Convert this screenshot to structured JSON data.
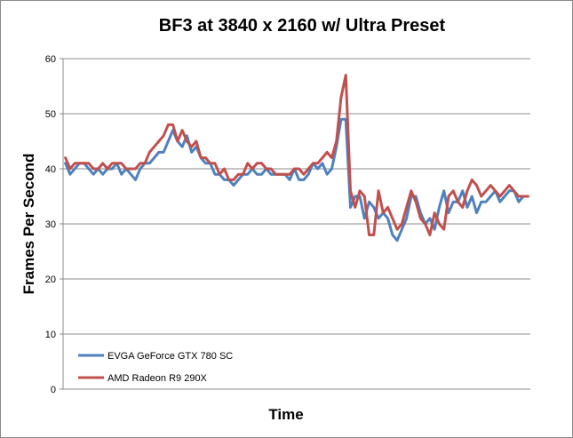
{
  "chart_data": {
    "type": "line",
    "title": "BF3 at 3840 x 2160 w/ Ultra Preset",
    "xlabel": "Time",
    "ylabel": "Frames Per Second",
    "ylim": [
      0,
      60
    ],
    "yticks": [
      0,
      10,
      20,
      30,
      40,
      50,
      60
    ],
    "grid": true,
    "legend_position": "bottom-left",
    "x": [
      1,
      2,
      3,
      4,
      5,
      6,
      7,
      8,
      9,
      10,
      11,
      12,
      13,
      14,
      15,
      16,
      17,
      18,
      19,
      20,
      21,
      22,
      23,
      24,
      25,
      26,
      27,
      28,
      29,
      30,
      31,
      32,
      33,
      34,
      35,
      36,
      37,
      38,
      39,
      40,
      41,
      42,
      43,
      44,
      45,
      46,
      47,
      48,
      49,
      50,
      51,
      52,
      53,
      54,
      55,
      56,
      57,
      58,
      59,
      60,
      61,
      62,
      63,
      64,
      65,
      66,
      67,
      68,
      69,
      70,
      71,
      72,
      73,
      74,
      75,
      76,
      77,
      78,
      79,
      80,
      81,
      82,
      83,
      84,
      85,
      86,
      87,
      88,
      89,
      90,
      91,
      92,
      93,
      94,
      95,
      96,
      97,
      98,
      99,
      100
    ],
    "series": [
      {
        "name": "EVGA GeForce GTX 780 SC",
        "color": "#4F81BD",
        "values": [
          41,
          39,
          40,
          41,
          41,
          40,
          39,
          40,
          39,
          40,
          40,
          41,
          39,
          40,
          39,
          38,
          40,
          41,
          41,
          42,
          43,
          43,
          45,
          47,
          45,
          44,
          46,
          43,
          44,
          42,
          41,
          41,
          39,
          39,
          38,
          38,
          37,
          38,
          39,
          39,
          40,
          39,
          39,
          40,
          39,
          39,
          39,
          39,
          38,
          40,
          38,
          38,
          39,
          41,
          40,
          41,
          39,
          40,
          44,
          49,
          49,
          33,
          35,
          35,
          31,
          34,
          33,
          31,
          32,
          31,
          28,
          27,
          29,
          31,
          35,
          35,
          32,
          30,
          31,
          29,
          33,
          36,
          32,
          34,
          34,
          36,
          33,
          35,
          32,
          34,
          34,
          35,
          36,
          34,
          35,
          36,
          36,
          34,
          35,
          35
        ]
      },
      {
        "name": "AMD Radeon R9 290X",
        "color": "#C0504D",
        "values": [
          42,
          40,
          41,
          41,
          41,
          41,
          40,
          40,
          41,
          40,
          41,
          41,
          41,
          40,
          40,
          40,
          41,
          41,
          43,
          44,
          45,
          46,
          48,
          48,
          45,
          47,
          45,
          44,
          45,
          42,
          42,
          41,
          41,
          39,
          40,
          38,
          38,
          39,
          39,
          41,
          40,
          41,
          41,
          40,
          40,
          39,
          39,
          39,
          39,
          40,
          40,
          39,
          40,
          41,
          41,
          42,
          43,
          42,
          45,
          53,
          57,
          36,
          33,
          36,
          35,
          28,
          28,
          36,
          32,
          33,
          31,
          29,
          30,
          33,
          36,
          34,
          31,
          30,
          28,
          32,
          30,
          29,
          35,
          36,
          34,
          33,
          36,
          38,
          37,
          35,
          36,
          37,
          36,
          35,
          36,
          37,
          36,
          35,
          35,
          35
        ]
      }
    ]
  }
}
